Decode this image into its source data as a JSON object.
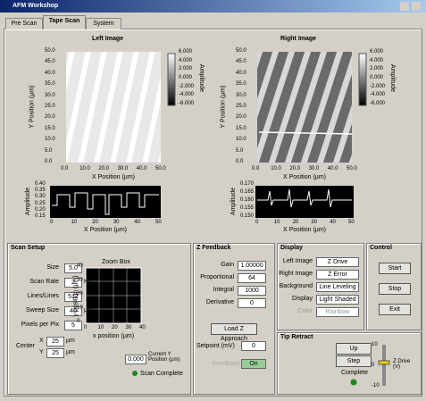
{
  "window": {
    "title": "AFM Workshop"
  },
  "tabs": [
    "Pre Scan",
    "Tape Scan",
    "System"
  ],
  "left_image": {
    "title": "Left Image",
    "y_label": "Y Position (µm)",
    "x_label": "X Position (µm)",
    "yticks": [
      "50.0",
      "45.0",
      "40.0",
      "35.0",
      "30.0",
      "25.0",
      "20.0",
      "15.0",
      "10.0",
      "5.0",
      "0.0"
    ],
    "xticks": [
      "0.0",
      "10.0",
      "20.0",
      "30.0",
      "40.0",
      "50.0"
    ],
    "colorbar_ticks": [
      "6.000",
      "4.000",
      "2.000",
      "0.000",
      "-2.000",
      "-4.000",
      "-6.000"
    ],
    "colorbar_label": "Amplitude",
    "profile": {
      "y_label": "Amplitude",
      "x_label": "X Position (µm)",
      "yticks": [
        "0.40",
        "0.35",
        "0.30",
        "0.25",
        "0.20",
        "0.15"
      ],
      "xticks": [
        "0",
        "10",
        "20",
        "30",
        "40",
        "50"
      ]
    }
  },
  "right_image": {
    "title": "Right Image",
    "y_label": "Y Position (µm)",
    "x_label": "X Position (µm)",
    "yticks": [
      "50.0",
      "45.0",
      "40.0",
      "35.0",
      "30.0",
      "25.0",
      "20.0",
      "15.0",
      "10.0",
      "5.0",
      "0.0"
    ],
    "xticks": [
      "0.0",
      "10.0",
      "20.0",
      "30.0",
      "40.0",
      "50.0"
    ],
    "colorbar_ticks": [
      "6.000",
      "4.000",
      "2.000",
      "0.000",
      "-2.000",
      "-4.000",
      "-6.000"
    ],
    "colorbar_label": "Amplitude",
    "profile": {
      "y_label": "Amplitude",
      "x_label": "X Position (µm)",
      "yticks": [
        "0.170",
        "0.165",
        "0.160",
        "0.155",
        "0.150"
      ],
      "xticks": [
        "0",
        "10",
        "20",
        "30",
        "40",
        "50"
      ]
    }
  },
  "scan_setup": {
    "title": "Scan Setup",
    "fields": [
      {
        "label": "Size",
        "value": "5.0",
        "unit": ""
      },
      {
        "label": "Scan Rate",
        "value": "2",
        "unit": "Hz"
      },
      {
        "label": "Lines/Lines",
        "value": "512",
        "unit": ""
      },
      {
        "label": "Sweep Size",
        "value": "40",
        "unit": "µm"
      },
      {
        "label": "Pixels per Pix",
        "value": "5",
        "unit": ""
      }
    ],
    "center_label": "Center",
    "center": [
      {
        "axis": "X",
        "value": "25",
        "unit": "µm"
      },
      {
        "axis": "Y",
        "value": "25",
        "unit": "µm"
      }
    ],
    "zoom": {
      "title": "Zoom Box",
      "y_label": "y position (µm)",
      "x_label": "x position (µm)",
      "yticks": [
        "40",
        "30",
        "20",
        "10",
        "0"
      ],
      "xticks": [
        "0",
        "10",
        "20",
        "30",
        "40"
      ]
    },
    "current_y": "0.000",
    "current_y_label": "Current Y Position (µm)",
    "status": "Scan Complete"
  },
  "z_feedback": {
    "title": "Z Feedback",
    "fields": [
      {
        "label": "Gain",
        "value": "1.00000"
      },
      {
        "label": "Proportional",
        "value": "64"
      },
      {
        "label": "Integral",
        "value": "1000"
      },
      {
        "label": "Derivative",
        "value": "0"
      }
    ],
    "approach": "Load Z Approach",
    "setpoint_label": "Setpoint (mV)",
    "setpoint": "0",
    "feedback_label": "Feedback",
    "feedback": "On"
  },
  "display": {
    "title": "Display",
    "fields": [
      {
        "label": "Left Image",
        "value": "Z Drive"
      },
      {
        "label": "Right Image",
        "value": "Z Error"
      },
      {
        "label": "Background",
        "value": "Line Leveling"
      },
      {
        "label": "Display",
        "value": "Light Shaded"
      },
      {
        "label": "Color",
        "value": "Rainbow"
      }
    ]
  },
  "control": {
    "title": "Control",
    "buttons": [
      "Start",
      "Stop",
      "Exit"
    ]
  },
  "tip_retract": {
    "title": "Tip Retract",
    "buttons": [
      "Up",
      "Step"
    ],
    "status": "Complete",
    "slider_ticks": [
      "10",
      "0",
      "-10"
    ],
    "slider_label": "Z Drive (V)"
  }
}
